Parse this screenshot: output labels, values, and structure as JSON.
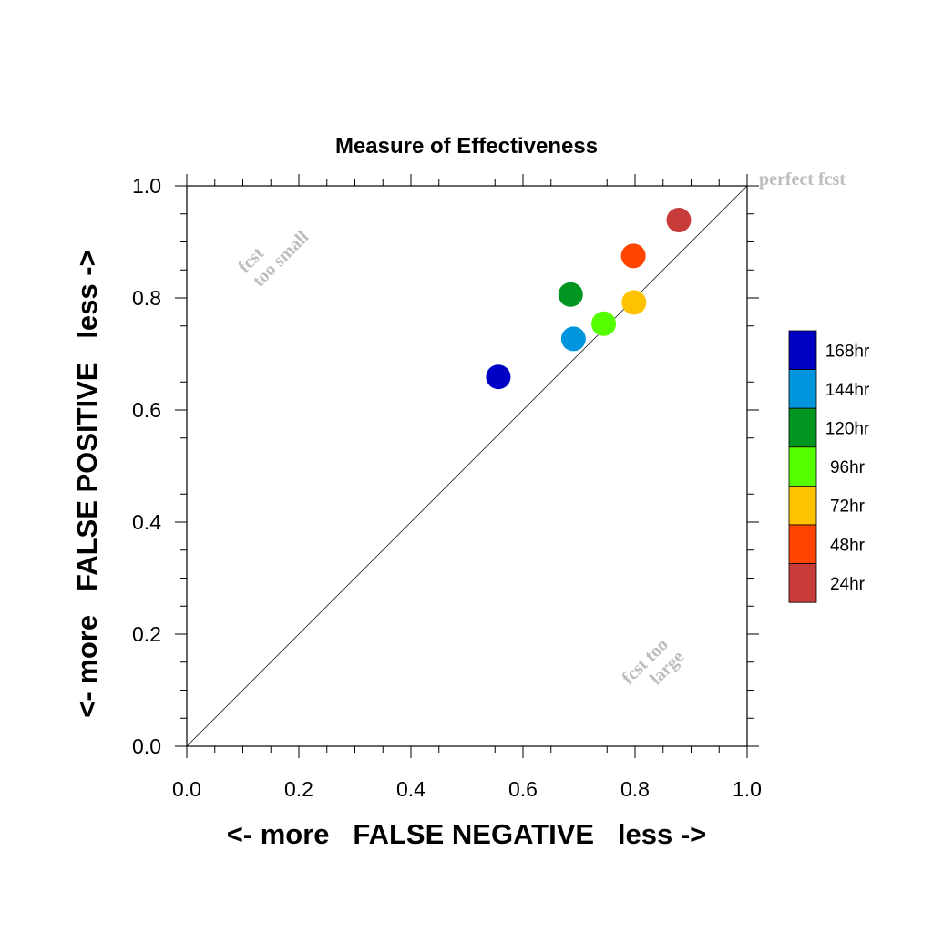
{
  "chart_data": {
    "type": "scatter",
    "title": "Measure of Effectiveness",
    "xlabel": "<- more   FALSE NEGATIVE   less ->",
    "ylabel": "<- more   FALSE POSITIVE   less ->",
    "xlim": [
      0,
      1
    ],
    "ylim": [
      0,
      1
    ],
    "xticks": [
      "0.0",
      "0.2",
      "0.4",
      "0.6",
      "0.8",
      "1.0"
    ],
    "yticks": [
      "0.0",
      "0.2",
      "0.4",
      "0.6",
      "0.8",
      "1.0"
    ],
    "grid": false,
    "legend_position": "right",
    "reference_line": "diagonal",
    "annotations": {
      "perfect": "perfect fcst",
      "small_line1": "fcst",
      "small_line2": "too small",
      "large_line1": "fcst too",
      "large_line2": "large"
    },
    "series": [
      {
        "name": "168hr",
        "color": "#0000c4",
        "x": 0.556,
        "y": 0.659
      },
      {
        "name": "144hr",
        "color": "#0095dc",
        "x": 0.69,
        "y": 0.727
      },
      {
        "name": "120hr",
        "color": "#009620",
        "x": 0.685,
        "y": 0.806
      },
      {
        "name": "96hr",
        "color": "#55ff00",
        "x": 0.744,
        "y": 0.754
      },
      {
        "name": "72hr",
        "color": "#ffc200",
        "x": 0.798,
        "y": 0.792
      },
      {
        "name": "48hr",
        "color": "#ff4500",
        "x": 0.797,
        "y": 0.875
      },
      {
        "name": "24hr",
        "color": "#c83b3b",
        "x": 0.878,
        "y": 0.939
      }
    ]
  }
}
